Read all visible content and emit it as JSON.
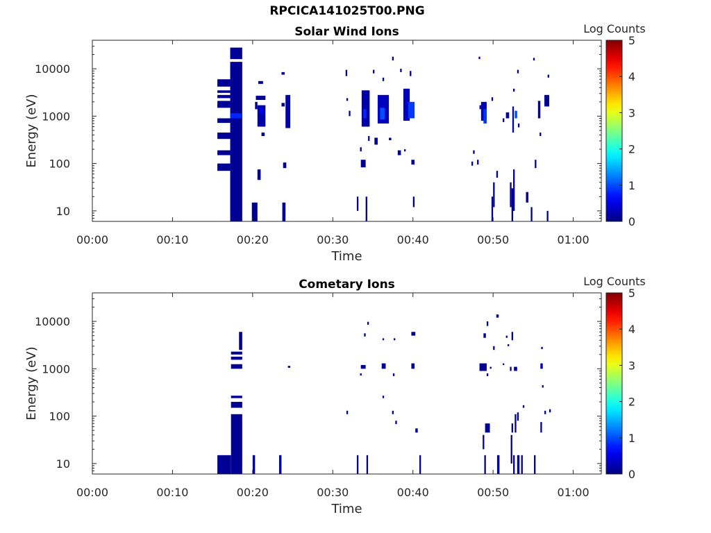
{
  "suptitle": "RPCICA141025T00.PNG",
  "chart_data": [
    {
      "type": "heatmap",
      "title": "Solar Wind Ions",
      "xlabel": "Time",
      "ylabel": "Energy (eV)",
      "x_ticks": [
        "00:00",
        "00:10",
        "00:20",
        "00:30",
        "00:40",
        "00:50",
        "01:00"
      ],
      "x_tick_minutes": [
        0,
        10,
        20,
        30,
        40,
        50,
        60
      ],
      "xlim_minutes": [
        0,
        63.5
      ],
      "yscale": "log",
      "ylim": [
        6,
        40000
      ],
      "y_ticks": [
        "10",
        "100",
        "1000",
        "10000"
      ],
      "y_tick_values": [
        10,
        100,
        1000,
        10000
      ],
      "colorbar": {
        "label": "Log Counts",
        "ticks": [
          "0",
          "1",
          "2",
          "3",
          "4",
          "5"
        ],
        "range": [
          0,
          5
        ],
        "colormap": "jet"
      },
      "cells": [
        [
          15.6,
          17.2,
          70,
          100,
          0.1
        ],
        [
          15.6,
          17.2,
          150,
          190,
          0.1
        ],
        [
          15.6,
          17.2,
          330,
          450,
          0.1
        ],
        [
          15.6,
          17.2,
          720,
          900,
          0.1
        ],
        [
          15.6,
          17.2,
          1500,
          2100,
          0.1
        ],
        [
          15.6,
          17.2,
          2400,
          2800,
          0.1
        ],
        [
          15.6,
          17.2,
          3100,
          3500,
          0.1
        ],
        [
          15.6,
          17.2,
          4200,
          6000,
          0.1
        ],
        [
          17.2,
          18.7,
          6,
          14000,
          0.1
        ],
        [
          17.2,
          18.7,
          16000,
          28000,
          0.1
        ],
        [
          17.2,
          18.7,
          900,
          1150,
          0.8
        ],
        [
          19.9,
          20.6,
          6,
          15,
          0.1
        ],
        [
          20.6,
          21.0,
          45,
          75,
          0.1
        ],
        [
          20.3,
          20.6,
          1400,
          2000,
          0.1
        ],
        [
          20.6,
          21.6,
          600,
          1700,
          0.2
        ],
        [
          20.9,
          21.3,
          1150,
          1500,
          0.6
        ],
        [
          20.4,
          21.6,
          2200,
          2700,
          0.1
        ],
        [
          20.7,
          21.3,
          4800,
          5500,
          0.1
        ],
        [
          21.1,
          21.5,
          380,
          450,
          0.1
        ],
        [
          23.7,
          24.1,
          6,
          15,
          0.1
        ],
        [
          23.8,
          24.2,
          80,
          105,
          0.1
        ],
        [
          24.1,
          24.7,
          560,
          2800,
          0.2
        ],
        [
          23.6,
          24.0,
          1600,
          1900,
          0.1
        ],
        [
          23.6,
          24.0,
          7500,
          8500,
          0.1
        ],
        [
          31.6,
          31.8,
          7000,
          9500,
          0.1
        ],
        [
          32.0,
          32.2,
          1000,
          1300,
          0.1
        ],
        [
          31.7,
          31.9,
          2100,
          2400,
          0.1
        ],
        [
          33.0,
          33.2,
          10,
          20,
          0.1
        ],
        [
          34.1,
          34.3,
          6,
          20,
          0.1
        ],
        [
          33.5,
          34.1,
          83,
          120,
          0.1
        ],
        [
          33.6,
          34.6,
          600,
          3500,
          0.2
        ],
        [
          33.8,
          34.2,
          900,
          1400,
          0.8
        ],
        [
          33.4,
          33.6,
          180,
          220,
          0.1
        ],
        [
          34.4,
          34.6,
          300,
          380,
          0.1
        ],
        [
          35.2,
          35.6,
          250,
          350,
          0.1
        ],
        [
          35.6,
          37.0,
          700,
          2800,
          0.3
        ],
        [
          35.9,
          36.5,
          850,
          1500,
          1.0
        ],
        [
          36.2,
          36.4,
          5500,
          6500,
          0.1
        ],
        [
          35.0,
          35.2,
          8000,
          9500,
          0.1
        ],
        [
          37.0,
          37.3,
          310,
          350,
          0.1
        ],
        [
          38.1,
          38.5,
          150,
          190,
          0.1
        ],
        [
          38.8,
          39.6,
          800,
          3800,
          0.3
        ],
        [
          39.4,
          40.2,
          900,
          2000,
          0.9
        ],
        [
          40.0,
          40.2,
          12,
          20,
          0.1
        ],
        [
          39.8,
          40.2,
          95,
          120,
          0.1
        ],
        [
          38.9,
          39.1,
          180,
          200,
          0.1
        ],
        [
          38.4,
          38.6,
          8500,
          10000,
          0.1
        ],
        [
          39.6,
          39.8,
          7000,
          9000,
          0.1
        ],
        [
          37.4,
          37.6,
          15000,
          18000,
          0.1
        ],
        [
          47.3,
          47.5,
          90,
          110,
          0.1
        ],
        [
          47.5,
          47.7,
          160,
          190,
          0.1
        ],
        [
          48.0,
          48.2,
          95,
          120,
          0.1
        ],
        [
          48.5,
          49.2,
          800,
          2000,
          0.3
        ],
        [
          48.8,
          49.2,
          700,
          1400,
          0.9
        ],
        [
          48.3,
          48.5,
          1400,
          1700,
          0.1
        ],
        [
          49.8,
          50.0,
          6,
          20,
          0.1
        ],
        [
          50.4,
          50.6,
          50,
          70,
          0.1
        ],
        [
          50.0,
          50.2,
          12,
          40,
          0.1
        ],
        [
          48.2,
          48.4,
          16000,
          18000,
          0.1
        ],
        [
          49.8,
          50.0,
          2100,
          2500,
          0.1
        ],
        [
          51.2,
          51.4,
          750,
          900,
          0.1
        ],
        [
          51.6,
          52.0,
          900,
          1200,
          0.1
        ],
        [
          52.1,
          52.3,
          12,
          40,
          0.1
        ],
        [
          52.3,
          52.5,
          6,
          30,
          0.1
        ],
        [
          52.5,
          52.7,
          10,
          75,
          0.1
        ],
        [
          52.4,
          52.6,
          450,
          1600,
          0.2
        ],
        [
          52.7,
          53.0,
          900,
          1300,
          1.0
        ],
        [
          53.1,
          53.3,
          580,
          700,
          0.1
        ],
        [
          52.5,
          52.7,
          3300,
          3800,
          0.1
        ],
        [
          53.0,
          53.2,
          8000,
          9500,
          0.1
        ],
        [
          54.1,
          54.4,
          15,
          25,
          0.1
        ],
        [
          54.7,
          54.9,
          6,
          12,
          0.1
        ],
        [
          55.2,
          55.4,
          80,
          120,
          0.1
        ],
        [
          55.6,
          55.9,
          900,
          2100,
          0.2
        ],
        [
          55.8,
          56.0,
          380,
          450,
          0.1
        ],
        [
          56.7,
          56.9,
          6,
          10,
          0.1
        ],
        [
          56.4,
          57.0,
          1600,
          2800,
          0.1
        ],
        [
          56.8,
          57.0,
          6500,
          7500,
          0.1
        ],
        [
          55.0,
          55.2,
          15000,
          17000,
          0.1
        ]
      ]
    },
    {
      "type": "heatmap",
      "title": "Cometary Ions",
      "xlabel": "Time",
      "ylabel": "Energy (eV)",
      "x_ticks": [
        "00:00",
        "00:10",
        "00:20",
        "00:30",
        "00:40",
        "00:50",
        "01:00"
      ],
      "x_tick_minutes": [
        0,
        10,
        20,
        30,
        40,
        50,
        60
      ],
      "xlim_minutes": [
        0,
        63.5
      ],
      "yscale": "log",
      "ylim": [
        6,
        40000
      ],
      "y_ticks": [
        "10",
        "100",
        "1000",
        "10000"
      ],
      "y_tick_values": [
        10,
        100,
        1000,
        10000
      ],
      "colorbar": {
        "label": "Log Counts",
        "ticks": [
          "0",
          "1",
          "2",
          "3",
          "4",
          "5"
        ],
        "range": [
          0,
          5
        ],
        "colormap": "jet"
      },
      "cells": [
        [
          15.6,
          17.3,
          6,
          15,
          0.1
        ],
        [
          17.3,
          18.7,
          6,
          110,
          0.1
        ],
        [
          17.3,
          18.7,
          150,
          200,
          0.1
        ],
        [
          17.3,
          18.7,
          240,
          270,
          0.1
        ],
        [
          17.3,
          18.7,
          1000,
          1250,
          0.1
        ],
        [
          17.3,
          18.7,
          1550,
          1800,
          0.1
        ],
        [
          17.3,
          18.7,
          2000,
          2300,
          0.1
        ],
        [
          18.3,
          18.7,
          2500,
          6000,
          0.1
        ],
        [
          20.0,
          20.3,
          6,
          15,
          0.1
        ],
        [
          23.3,
          23.6,
          6,
          15,
          0.1
        ],
        [
          24.4,
          24.7,
          1050,
          1150,
          0.1
        ],
        [
          31.7,
          31.9,
          110,
          130,
          0.1
        ],
        [
          33.0,
          33.2,
          6,
          15,
          0.1
        ],
        [
          33.4,
          33.6,
          720,
          800,
          0.1
        ],
        [
          33.5,
          34.1,
          1000,
          1200,
          0.1
        ],
        [
          34.2,
          34.4,
          6,
          15,
          0.1
        ],
        [
          33.9,
          34.1,
          4800,
          5600,
          0.1
        ],
        [
          34.3,
          34.5,
          8500,
          9800,
          0.1
        ],
        [
          36.1,
          36.6,
          1000,
          1300,
          0.1
        ],
        [
          36.2,
          36.4,
          240,
          270,
          0.1
        ],
        [
          37.4,
          37.6,
          110,
          130,
          0.1
        ],
        [
          37.5,
          37.7,
          700,
          800,
          0.1
        ],
        [
          37.8,
          38.0,
          68,
          80,
          0.1
        ],
        [
          36.2,
          36.4,
          4000,
          4400,
          0.1
        ],
        [
          37.6,
          37.8,
          4000,
          4400,
          0.1
        ],
        [
          39.8,
          40.2,
          1000,
          1300,
          0.1
        ],
        [
          39.8,
          40.3,
          5000,
          6000,
          0.1
        ],
        [
          40.3,
          40.6,
          45,
          55,
          0.1
        ],
        [
          40.8,
          41.0,
          6,
          15,
          0.1
        ],
        [
          48.3,
          49.2,
          900,
          1300,
          0.1
        ],
        [
          48.7,
          48.9,
          20,
          40,
          0.1
        ],
        [
          48.9,
          49.1,
          6,
          15,
          0.1
        ],
        [
          49.0,
          49.6,
          45,
          70,
          0.1
        ],
        [
          49.2,
          49.4,
          700,
          800,
          0.1
        ],
        [
          49.6,
          49.8,
          1000,
          1100,
          0.1
        ],
        [
          48.8,
          49.1,
          4500,
          5600,
          0.1
        ],
        [
          49.2,
          49.4,
          8000,
          10000,
          0.1
        ],
        [
          50.0,
          50.2,
          2500,
          3000,
          0.1
        ],
        [
          50.4,
          50.7,
          12000,
          14000,
          0.1
        ],
        [
          50.5,
          50.8,
          6,
          15,
          0.1
        ],
        [
          51.2,
          51.4,
          1200,
          1300,
          0.1
        ],
        [
          51.6,
          51.8,
          4500,
          5000,
          0.1
        ],
        [
          51.8,
          52.0,
          3000,
          3300,
          0.1
        ],
        [
          52.1,
          52.3,
          900,
          1100,
          0.1
        ],
        [
          52.2,
          52.4,
          10,
          40,
          0.1
        ],
        [
          52.3,
          52.5,
          45,
          70,
          0.1
        ],
        [
          52.5,
          52.7,
          6,
          15,
          0.1
        ],
        [
          52.6,
          53.0,
          900,
          1100,
          0.1
        ],
        [
          53.0,
          53.3,
          6,
          15,
          0.1
        ],
        [
          52.7,
          52.9,
          45,
          110,
          0.1
        ],
        [
          53.0,
          53.2,
          80,
          120,
          0.1
        ],
        [
          52.3,
          52.5,
          4000,
          6000,
          0.1
        ],
        [
          53.5,
          53.7,
          6,
          15,
          0.1
        ],
        [
          53.7,
          53.9,
          150,
          170,
          0.1
        ],
        [
          55.1,
          55.3,
          6,
          15,
          0.1
        ],
        [
          55.9,
          56.2,
          1000,
          1300,
          0.1
        ],
        [
          55.9,
          56.1,
          45,
          75,
          0.1
        ],
        [
          56.1,
          56.3,
          400,
          450,
          0.1
        ],
        [
          56.0,
          56.2,
          2600,
          2900,
          0.1
        ],
        [
          56.4,
          56.6,
          110,
          130,
          0.1
        ],
        [
          57.0,
          57.2,
          120,
          140,
          0.1
        ]
      ]
    }
  ]
}
